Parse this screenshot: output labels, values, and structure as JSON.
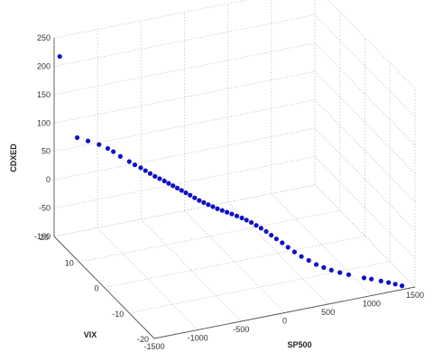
{
  "chart_data": {
    "type": "scatter3d",
    "xlabel": "SP500",
    "ylabel": "VIX",
    "zlabel": "CDXED",
    "xlim": [
      -1500,
      1500
    ],
    "ylim": [
      -20,
      20
    ],
    "zlim": [
      -100,
      250
    ],
    "x_ticks": [
      "-1500",
      "-1000",
      "-500",
      "0",
      "500",
      "1000",
      "1500"
    ],
    "y_ticks": [
      "-20",
      "-10",
      "0",
      "10",
      "20"
    ],
    "z_ticks": [
      "-100",
      "-50",
      "0",
      "50",
      "100",
      "150",
      "200",
      "250"
    ],
    "grid": true,
    "marker_color": "#1010c8",
    "points": [
      {
        "x": -1450,
        "y": 19.5,
        "z": 218
      },
      {
        "x": -1255,
        "y": 19.3,
        "z": 70
      },
      {
        "x": -1145,
        "y": 18.8,
        "z": 63
      },
      {
        "x": -1035,
        "y": 18.2,
        "z": 56
      },
      {
        "x": -955,
        "y": 17.5,
        "z": 50
      },
      {
        "x": -905,
        "y": 17.0,
        "z": 45
      },
      {
        "x": -845,
        "y": 16.3,
        "z": 38
      },
      {
        "x": -765,
        "y": 15.5,
        "z": 30
      },
      {
        "x": -715,
        "y": 15.0,
        "z": 25
      },
      {
        "x": -665,
        "y": 14.4,
        "z": 21
      },
      {
        "x": -625,
        "y": 13.9,
        "z": 17
      },
      {
        "x": -585,
        "y": 13.4,
        "z": 13
      },
      {
        "x": -545,
        "y": 12.9,
        "z": 9
      },
      {
        "x": -505,
        "y": 12.4,
        "z": 6
      },
      {
        "x": -465,
        "y": 11.9,
        "z": 3
      },
      {
        "x": -430,
        "y": 11.4,
        "z": 0
      },
      {
        "x": -395,
        "y": 10.9,
        "z": -3
      },
      {
        "x": -360,
        "y": 10.4,
        "z": -6
      },
      {
        "x": -325,
        "y": 9.9,
        "z": -9
      },
      {
        "x": -290,
        "y": 9.4,
        "z": -12
      },
      {
        "x": -255,
        "y": 8.9,
        "z": -15
      },
      {
        "x": -220,
        "y": 8.3,
        "z": -18
      },
      {
        "x": -185,
        "y": 7.7,
        "z": -21
      },
      {
        "x": -150,
        "y": 7.1,
        "z": -23
      },
      {
        "x": -115,
        "y": 6.5,
        "z": -25
      },
      {
        "x": -80,
        "y": 5.9,
        "z": -27
      },
      {
        "x": -45,
        "y": 5.3,
        "z": -29
      },
      {
        "x": -10,
        "y": 4.6,
        "z": -30
      },
      {
        "x": 25,
        "y": 3.9,
        "z": -31
      },
      {
        "x": 60,
        "y": 3.2,
        "z": -32
      },
      {
        "x": 95,
        "y": 2.4,
        "z": -33
      },
      {
        "x": 130,
        "y": 1.6,
        "z": -34
      },
      {
        "x": 160,
        "y": 0.8,
        "z": -35
      },
      {
        "x": 190,
        "y": -0.1,
        "z": -36
      },
      {
        "x": 220,
        "y": -1.0,
        "z": -38
      },
      {
        "x": 250,
        "y": -1.9,
        "z": -40
      },
      {
        "x": 280,
        "y": -2.9,
        "z": -42
      },
      {
        "x": 310,
        "y": -3.9,
        "z": -45
      },
      {
        "x": 340,
        "y": -4.9,
        "z": -48
      },
      {
        "x": 375,
        "y": -6.0,
        "z": -51
      },
      {
        "x": 410,
        "y": -7.1,
        "z": -55
      },
      {
        "x": 450,
        "y": -8.3,
        "z": -59
      },
      {
        "x": 495,
        "y": -9.5,
        "z": -63
      },
      {
        "x": 545,
        "y": -10.7,
        "z": -66
      },
      {
        "x": 600,
        "y": -11.8,
        "z": -70
      },
      {
        "x": 660,
        "y": -12.7,
        "z": -73
      },
      {
        "x": 725,
        "y": -13.5,
        "z": -76
      },
      {
        "x": 800,
        "y": -14.3,
        "z": -79
      },
      {
        "x": 880,
        "y": -15.0,
        "z": -82
      },
      {
        "x": 1020,
        "y": -16.3,
        "z": -86
      },
      {
        "x": 1090,
        "y": -16.8,
        "z": -88
      },
      {
        "x": 1180,
        "y": -17.5,
        "z": -91
      },
      {
        "x": 1250,
        "y": -18.1,
        "z": -93
      },
      {
        "x": 1310,
        "y": -18.7,
        "z": -95
      },
      {
        "x": 1370,
        "y": -19.3,
        "z": -97
      }
    ]
  }
}
